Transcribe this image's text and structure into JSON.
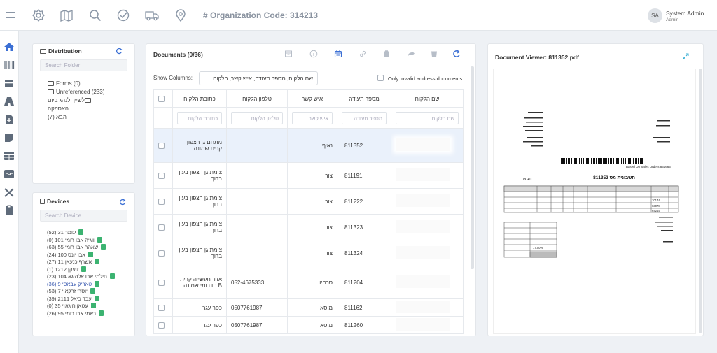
{
  "header": {
    "org_label": "# Organization Code: 314213",
    "user_initials": "SA",
    "user_name": "System Admin",
    "user_role": "Admin",
    "icons": [
      "settings-icon",
      "map-icon",
      "search-icon",
      "check-circle-icon",
      "truck-icon",
      "location-pin-icon"
    ]
  },
  "left_nav": {
    "icons": [
      "home-icon",
      "barcode-icon",
      "box-icon",
      "road-icon",
      "document-add-icon",
      "note-icon",
      "table-icon",
      "inbox-icon",
      "tools-icon",
      "clipboard-icon"
    ]
  },
  "distribution": {
    "title": "Distribution",
    "search_placeholder": "Search Folder",
    "folders": [
      "Forms (0)",
      "Unreferenced (233)",
      "לשייך לנהג ביום האספקה",
      "הבא (7)"
    ]
  },
  "devices": {
    "title": "Devices",
    "search_placeholder": "Search Device",
    "items": [
      "עומר 31 (52)",
      "ווגיה אבו רומי 101 (0)",
      "שאהר אבו רומי 55 (63)",
      "אבו יונס 100 (24)",
      "אשרף כנעאן 11 (27)",
      "זועקן 1212 (1)",
      "חילמי אבו אלהיגא 104 (23)",
      "טאריק עבאסי 9 (36)",
      "יוסרי זרקאוי 7 (53)",
      "עבד כיאל 2111 (39)",
      "עטאן חיגאזי 35 (0)",
      "ראמי אבו רומי 95 (26)"
    ],
    "highlighted_index": 7
  },
  "documents": {
    "title": "Documents (0/36)",
    "show_columns_label": "Show Columns:",
    "show_columns_value": "שם הלקוח, מספר תעודה, איש קשר, הלקוח...",
    "invalid_only_label": "Only invalid address documents",
    "toolbar_icons": [
      "archive-icon",
      "info-icon",
      "calendar-icon",
      "link-icon",
      "trash-icon",
      "share-icon",
      "bin-icon",
      "refresh-icon"
    ],
    "columns": [
      "שם הלקוח",
      "מספר תעודה",
      "איש קשר",
      "טלפון הלקוח",
      "כתובת הלקוח"
    ],
    "filters": [
      "שם הלקוח",
      "מספר תעודה",
      "איש קשר",
      "טלפון הלקוח",
      "כתובת הלקוח"
    ],
    "rows": [
      {
        "doc": "811352",
        "contact": "נאיף",
        "phone": "",
        "address": "מתחם גן הצפון קרית שמונה",
        "selected": true
      },
      {
        "doc": "811191",
        "contact": "צור",
        "phone": "",
        "address": "צומת גן הצפון בעין ברוך",
        "selected": false
      },
      {
        "doc": "811222",
        "contact": "צור",
        "phone": "",
        "address": "צומת גן הצפון בעין ברוך",
        "selected": false
      },
      {
        "doc": "811323",
        "contact": "צור",
        "phone": "",
        "address": "צומת גן הצפון בעין ברוך",
        "selected": false
      },
      {
        "doc": "811324",
        "contact": "צור",
        "phone": "",
        "address": "צומת גן הצפון בעין ברוך",
        "selected": false
      },
      {
        "doc": "811204",
        "contact": "סרחיו",
        "phone": "052-4675333",
        "address": "אזור תעשייה קרית B הדרומי שמונה",
        "selected": false
      },
      {
        "doc": "811162",
        "contact": "מוסא",
        "phone": "0507761987",
        "address": "כפר עגר",
        "selected": false
      },
      {
        "doc": "811260",
        "contact": "מוסא",
        "phone": "0507761987",
        "address": "כפר עגר",
        "selected": false
      }
    ]
  },
  "viewer": {
    "title": "Document Viewer: 811352.pdf",
    "invoice_heading": "חשבונית מס 811352",
    "invoice_copy": "העתק",
    "based_on": "Based On Sales Orders 831663.",
    "item_codes": [
      "10174",
      "63078",
      "64245"
    ],
    "vat": "17.00%"
  }
}
